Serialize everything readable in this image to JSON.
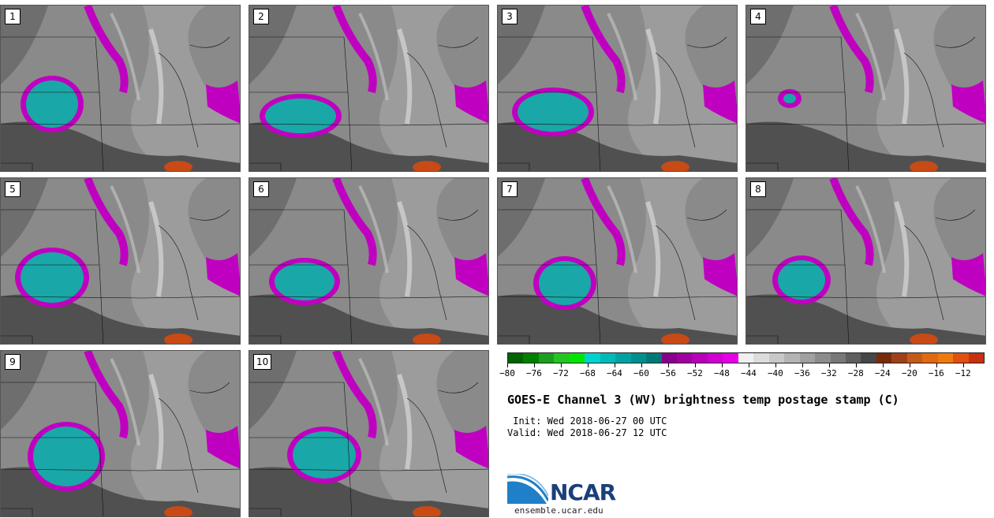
{
  "panels": [
    {
      "label": "1"
    },
    {
      "label": "2"
    },
    {
      "label": "3"
    },
    {
      "label": "4"
    },
    {
      "label": "5"
    },
    {
      "label": "6"
    },
    {
      "label": "7"
    },
    {
      "label": "8"
    },
    {
      "label": "9"
    },
    {
      "label": "10"
    }
  ],
  "colorbar": {
    "colors": [
      "#006400",
      "#008000",
      "#1e9e1e",
      "#22c622",
      "#00e600",
      "#00d2d2",
      "#00baba",
      "#00a3a3",
      "#008f8f",
      "#007878",
      "#8b008b",
      "#a000a0",
      "#b800b8",
      "#d000d0",
      "#e600e6",
      "#f0f0f0",
      "#dcdcdc",
      "#c8c8c8",
      "#b4b4b4",
      "#a0a0a0",
      "#8c8c8c",
      "#787878",
      "#5f5f5f",
      "#464646",
      "#7a2a0a",
      "#a0401a",
      "#c45a1a",
      "#e06a10",
      "#f07a10",
      "#e05010",
      "#c83010"
    ],
    "tick_labels": [
      "−80",
      "−76",
      "−72",
      "−68",
      "−64",
      "−60",
      "−56",
      "−52",
      "−48",
      "−44",
      "−40",
      "−36",
      "−32",
      "−28",
      "−24",
      "−20",
      "−16",
      "−12"
    ]
  },
  "title": "GOES-E Channel 3 (WV) brightness temp postage stamp (C)",
  "init": " Init: Wed 2018-06-27 00 UTC",
  "valid": "Valid: Wed 2018-06-27 12 UTC",
  "logo_text": "NCAR",
  "site": "ensemble.ucar.edu",
  "colors": {
    "cold_core": "#1aa7a7",
    "cold_edge": "#c000c0",
    "warm": "#c84a14"
  }
}
